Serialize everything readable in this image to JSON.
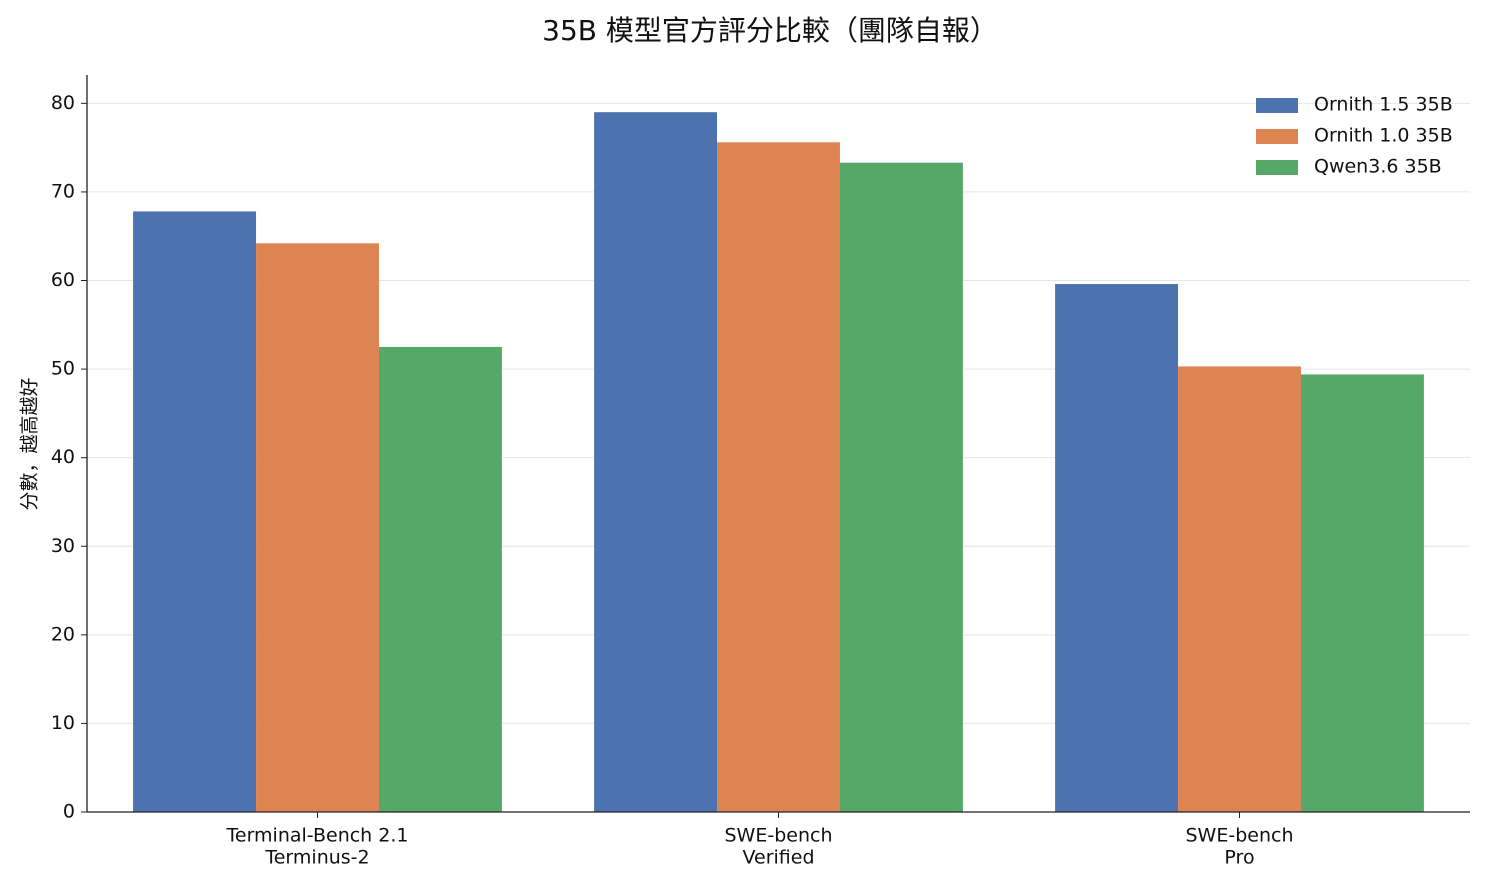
{
  "chart_data": {
    "type": "bar",
    "title": "35B 模型官方評分比較（團隊自報）",
    "ylabel": "分數，越高越好",
    "categories": [
      [
        "Terminal-Bench 2.1",
        "Terminus-2"
      ],
      [
        "SWE-bench",
        "Verified"
      ],
      [
        "SWE-bench",
        "Pro"
      ]
    ],
    "series": [
      {
        "name": "Ornith 1.5 35B",
        "color": "#4c72b0",
        "values": [
          67.8,
          79.0,
          59.6
        ]
      },
      {
        "name": "Ornith 1.0 35B",
        "color": "#dd8452",
        "values": [
          64.2,
          75.6,
          50.3
        ]
      },
      {
        "name": "Qwen3.6 35B",
        "color": "#55a868",
        "values": [
          52.5,
          73.3,
          49.4
        ]
      }
    ],
    "ylim": [
      0,
      83.2
    ],
    "yticks": [
      0,
      10,
      20,
      30,
      40,
      50,
      60,
      70,
      80
    ],
    "grid": true,
    "legend": "upper right"
  }
}
